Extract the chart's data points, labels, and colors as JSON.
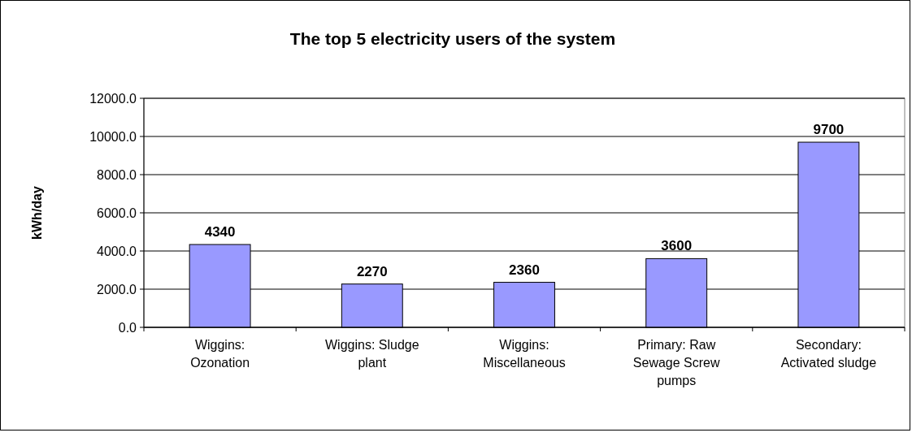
{
  "chart_data": {
    "type": "bar",
    "title": "The top 5 electricity users of the system",
    "ylabel": "kWh/day",
    "categories": [
      "Wiggins: Ozonation",
      "Wiggins: Sludge plant",
      "Wiggins: Miscellaneous",
      "Primary: Raw Sewage Screw pumps",
      "Secondary: Activated sludge"
    ],
    "values": [
      4340,
      2270,
      2360,
      3600,
      9700
    ],
    "color": "#9999ff",
    "ylim": [
      0,
      12000
    ],
    "yticks": [
      {
        "value": 0,
        "label": "0.0"
      },
      {
        "value": 2000,
        "label": "2000.0"
      },
      {
        "value": 4000,
        "label": "4000.0"
      },
      {
        "value": 6000,
        "label": "6000.0"
      },
      {
        "value": 8000,
        "label": "8000.0"
      },
      {
        "value": 10000,
        "label": "10000.0"
      },
      {
        "value": 12000,
        "label": "12000.0"
      }
    ],
    "grid": "y",
    "data_labels": true
  }
}
